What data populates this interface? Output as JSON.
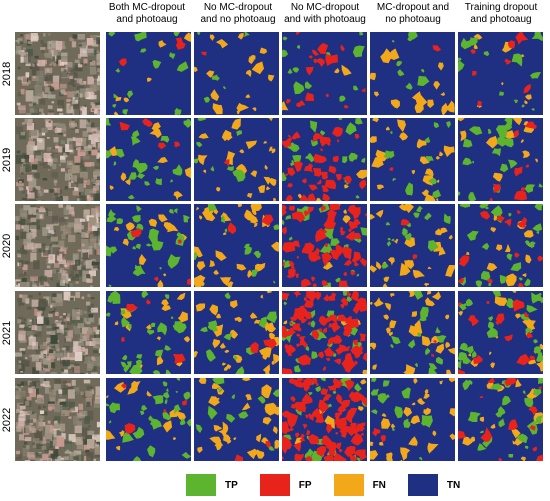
{
  "column_headers": [
    "Both MC-dropout\nand photoaug",
    "No MC-dropout\nand no photoaug",
    "No MC-dropout\nand with photoaug",
    "MC-dropout and\nno photoaug",
    "Training dropout\nand photoaug"
  ],
  "row_labels": [
    "2018",
    "2019",
    "2020",
    "2021",
    "2022"
  ],
  "legend": [
    {
      "label": "TP",
      "color": "#5db42f"
    },
    {
      "label": "FP",
      "color": "#e8231c"
    },
    {
      "label": "FN",
      "color": "#f2a818"
    },
    {
      "label": "TN",
      "color": "#1f2f82"
    }
  ],
  "colors": {
    "tn_background": "#1f2f82",
    "tp": "#5db42f",
    "fp": "#e8231c",
    "fn": "#f2a818",
    "satellite_base": "#6f6a5a"
  }
}
